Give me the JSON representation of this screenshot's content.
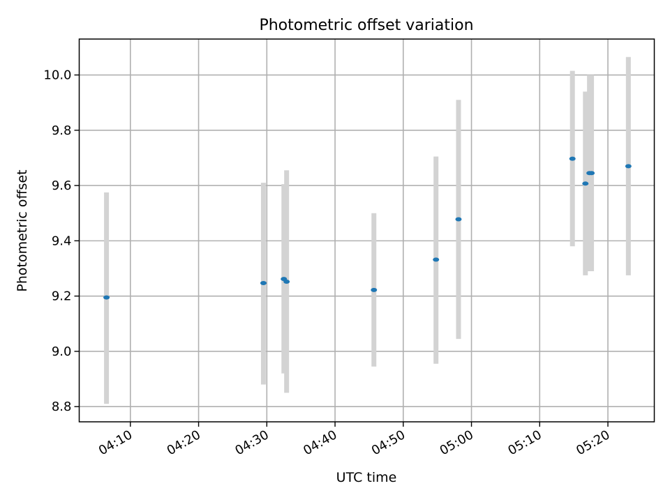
{
  "chart_data": {
    "type": "scatter",
    "title": "Photometric offset variation",
    "xlabel": "UTC time",
    "ylabel": "Photometric offset",
    "xlim": [
      "04:02.5",
      "05:26.8"
    ],
    "ylim": [
      8.745,
      10.13
    ],
    "grid": true,
    "x_ticks": [
      "04:10",
      "04:20",
      "04:30",
      "04:40",
      "04:50",
      "05:00",
      "05:10",
      "05:20"
    ],
    "y_ticks": [
      "8.8",
      "9.0",
      "9.2",
      "9.4",
      "9.6",
      "9.8",
      "10.0"
    ],
    "marker_color": "#1f77b4",
    "errorbar_color": "#d3d3d3",
    "points": [
      {
        "time": "04:06.5",
        "y": 9.195,
        "err_low": 8.81,
        "err_high": 9.575
      },
      {
        "time": "04:29.5",
        "y": 9.247,
        "err_low": 8.88,
        "err_high": 9.61
      },
      {
        "time": "04:32.5",
        "y": 9.262,
        "err_low": 8.92,
        "err_high": 9.605
      },
      {
        "time": "04:32.9",
        "y": 9.252,
        "err_low": 8.85,
        "err_high": 9.655
      },
      {
        "time": "04:45.7",
        "y": 9.222,
        "err_low": 8.945,
        "err_high": 9.5
      },
      {
        "time": "04:54.8",
        "y": 9.332,
        "err_low": 8.955,
        "err_high": 9.705
      },
      {
        "time": "04:58.1",
        "y": 9.478,
        "err_low": 9.045,
        "err_high": 9.91
      },
      {
        "time": "05:14.8",
        "y": 9.697,
        "err_low": 9.38,
        "err_high": 10.015
      },
      {
        "time": "05:16.7",
        "y": 9.607,
        "err_low": 9.275,
        "err_high": 9.94
      },
      {
        "time": "05:17.3",
        "y": 9.645,
        "err_low": 9.29,
        "err_high": 10.0
      },
      {
        "time": "05:17.6",
        "y": 9.645,
        "err_low": 9.29,
        "err_high": 10.0
      },
      {
        "time": "05:23.0",
        "y": 9.67,
        "err_low": 9.275,
        "err_high": 10.065
      }
    ]
  }
}
